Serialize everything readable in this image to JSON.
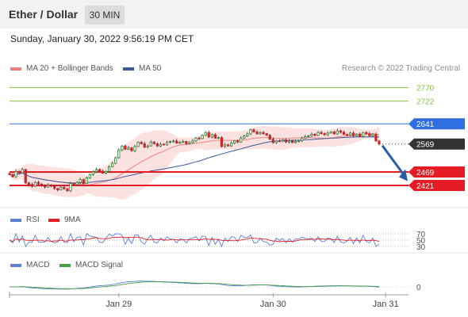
{
  "header": {
    "title": "Ether / Dollar",
    "timeframe": "30 MIN"
  },
  "datetime": "Sunday, January 30, 2022 9:56:19 PM CET",
  "copyright": "Research © 2022 Trading Central",
  "colors": {
    "resistance": "#8bc34a",
    "pivot": "#2f6fe0",
    "support": "#e51c23",
    "price": "#333333",
    "bullish_candle": "#2e7d32",
    "bearish_candle": "#c62828",
    "bollinger": "#fbdcdc",
    "ma20": "#f08080",
    "ma50": "#3b5998",
    "rsi": "#5b7fd6",
    "rsi_9ma": "#e51c23",
    "macd": "#5b7fd6",
    "macd_signal": "#43a047",
    "arrow": "#2a5fa8"
  },
  "chart_data": [
    {
      "type": "candlestick",
      "legend": [
        {
          "label": "MA 20 + Bollinger Bands",
          "color": "#f08080"
        },
        {
          "label": "MA 50",
          "color": "#3b5998"
        }
      ],
      "ylim": [
        2390,
        2800
      ],
      "levels": [
        {
          "label": "2770",
          "value": 2770,
          "kind": "resistance"
        },
        {
          "label": "2722",
          "value": 2722,
          "kind": "resistance"
        },
        {
          "label": "2641",
          "value": 2641,
          "kind": "pivot"
        },
        {
          "label": "2569",
          "value": 2569,
          "kind": "price"
        },
        {
          "label": "2469",
          "value": 2469,
          "kind": "support"
        },
        {
          "label": "2421",
          "value": 2421,
          "kind": "support"
        }
      ],
      "close": [
        2460,
        2452,
        2471,
        2466,
        2478,
        2430,
        2425,
        2418,
        2432,
        2426,
        2420,
        2415,
        2422,
        2418,
        2410,
        2405,
        2415,
        2409,
        2402,
        2428,
        2424,
        2432,
        2442,
        2428,
        2448,
        2460,
        2470,
        2478,
        2472,
        2465,
        2471,
        2488,
        2500,
        2520,
        2548,
        2562,
        2550,
        2555,
        2545,
        2560,
        2575,
        2570,
        2558,
        2562,
        2576,
        2570,
        2562,
        2568,
        2566,
        2575,
        2578,
        2580,
        2572,
        2576,
        2578,
        2570,
        2574,
        2580,
        2590,
        2588,
        2600,
        2610,
        2594,
        2602,
        2590,
        2592,
        2560,
        2566,
        2562,
        2572,
        2580,
        2576,
        2590,
        2598,
        2605,
        2620,
        2612,
        2605,
        2610,
        2606,
        2600,
        2586,
        2574,
        2580,
        2579,
        2584,
        2576,
        2580,
        2574,
        2578,
        2581,
        2590,
        2595,
        2598,
        2604,
        2600,
        2610,
        2606,
        2602,
        2608,
        2612,
        2605,
        2616,
        2611,
        2603,
        2600,
        2608,
        2598,
        2604,
        2596,
        2610,
        2606,
        2598,
        2604,
        2580,
        2569
      ],
      "x_tick_labels": [
        {
          "label": "Jan 29",
          "index": 34
        },
        {
          "label": "Jan 30",
          "index": 82
        },
        {
          "label": "Jan 31",
          "index": 117
        }
      ]
    },
    {
      "type": "line",
      "title": "RSI",
      "series": [
        {
          "name": "RSI",
          "color": "#5b7fd6"
        },
        {
          "name": "9MA",
          "color": "#e51c23"
        }
      ],
      "ylim": [
        20,
        80
      ],
      "levels": [
        {
          "label": "70",
          "value": 70
        },
        {
          "label": "50",
          "value": 50
        },
        {
          "label": "30",
          "value": 30
        }
      ]
    },
    {
      "type": "line",
      "title": "MACD",
      "series": [
        {
          "name": "MACD",
          "color": "#5b7fd6"
        },
        {
          "name": "MACD Signal",
          "color": "#43a047"
        }
      ],
      "levels": [
        {
          "label": "0",
          "value": 0
        }
      ]
    }
  ]
}
